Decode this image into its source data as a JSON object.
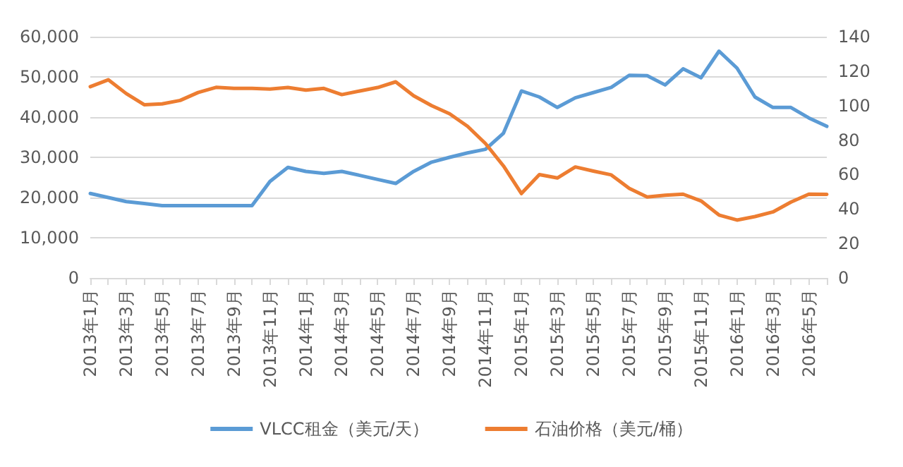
{
  "chart_data": {
    "type": "line",
    "categories": [
      "2013年1月",
      null,
      "2013年3月",
      null,
      "2013年5月",
      null,
      "2013年7月",
      null,
      "2013年9月",
      null,
      "2013年11月",
      null,
      "2014年1月",
      null,
      "2014年3月",
      null,
      "2014年5月",
      null,
      "2014年7月",
      null,
      "2014年9月",
      null,
      "2014年11月",
      null,
      "2015年1月",
      null,
      "2015年3月",
      null,
      "2015年5月",
      null,
      "2015年7月",
      null,
      "2015年9月",
      null,
      "2015年11月",
      null,
      "2016年1月",
      null,
      "2016年3月",
      null,
      "2016年5月",
      null
    ],
    "series": [
      {
        "name": "VLCC租金（美元/天）",
        "color": "#5b9bd5",
        "values": [
          21000,
          20000,
          19000,
          18500,
          18000,
          18000,
          18000,
          18000,
          18000,
          18000,
          24000,
          27500,
          26500,
          26000,
          26500,
          25500,
          24500,
          23500,
          26500,
          28800,
          30000,
          31100,
          32000,
          36000,
          46500,
          45000,
          42400,
          44800,
          46100,
          47400,
          50400,
          50300,
          48000,
          52000,
          49800,
          56400,
          52200,
          45000,
          42400,
          42400,
          39800,
          37700
        ]
      },
      {
        "name": "石油价格（美元/桶）",
        "color": "#ed7d31",
        "axis": "y2",
        "values": [
          111,
          115,
          107,
          100.5,
          101,
          103,
          107.6,
          110.6,
          110,
          110,
          109.6,
          110.5,
          109,
          110,
          106.4,
          108.5,
          110.5,
          113.8,
          105.7,
          100,
          95.3,
          88,
          78,
          65,
          49,
          60,
          58,
          64.4,
          62,
          59.8,
          52,
          47,
          48,
          48.6,
          44.7,
          36.5,
          33.6,
          35.6,
          38.3,
          44,
          48.6,
          48.5
        ]
      }
    ],
    "ylim": [
      0,
      60000
    ],
    "yticks": [
      {
        "value": 0,
        "label": "0"
      },
      {
        "value": 10000,
        "label": "10,000"
      },
      {
        "value": 20000,
        "label": "20,000"
      },
      {
        "value": 30000,
        "label": "30,000"
      },
      {
        "value": 40000,
        "label": "40,000"
      },
      {
        "value": 50000,
        "label": "50,000"
      },
      {
        "value": 60000,
        "label": "60,000"
      }
    ],
    "y2lim": [
      0,
      140
    ],
    "y2ticks": [
      0,
      20,
      40,
      60,
      80,
      100,
      120,
      140
    ],
    "grid": "y",
    "legend": "bottom",
    "marker": "none",
    "line_style": "solid"
  }
}
